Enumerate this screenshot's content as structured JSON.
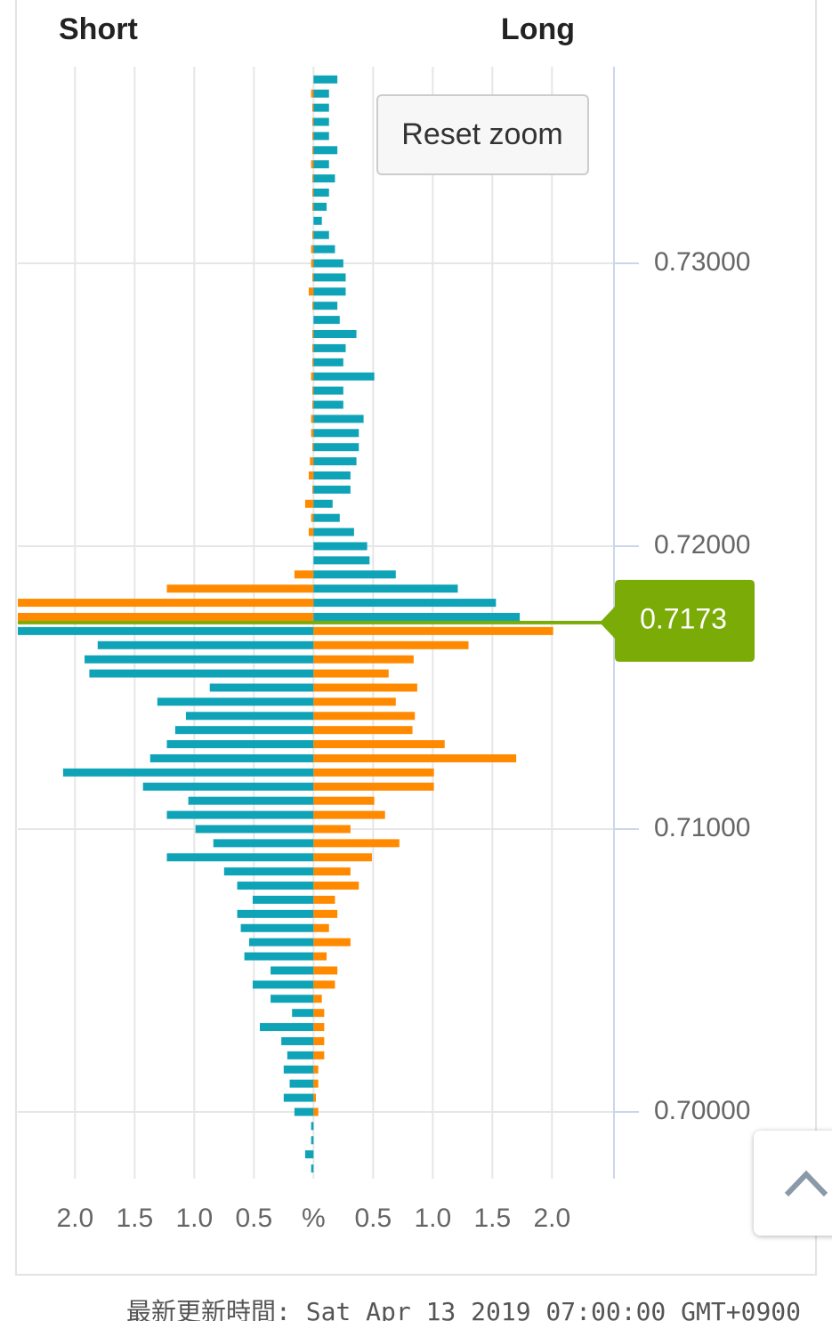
{
  "header": {
    "short": "Short",
    "long": "Long"
  },
  "reset_button": "Reset zoom",
  "footer": "最新更新時間: Sat Apr 13 2019 07:00:00 GMT+0900",
  "chart_data": {
    "type": "butterfly-bar",
    "prices": [
      0.7365,
      0.736,
      0.7355,
      0.735,
      0.7345,
      0.734,
      0.7335,
      0.733,
      0.7325,
      0.732,
      0.7315,
      0.731,
      0.7305,
      0.73,
      0.7295,
      0.729,
      0.7285,
      0.728,
      0.7275,
      0.727,
      0.7265,
      0.726,
      0.7255,
      0.725,
      0.7245,
      0.724,
      0.7235,
      0.723,
      0.7225,
      0.722,
      0.7215,
      0.721,
      0.7205,
      0.72,
      0.7195,
      0.719,
      0.7185,
      0.718,
      0.7175,
      0.717,
      0.7165,
      0.716,
      0.7155,
      0.715,
      0.7145,
      0.714,
      0.7135,
      0.713,
      0.7125,
      0.712,
      0.7115,
      0.711,
      0.7105,
      0.71,
      0.7095,
      0.709,
      0.7085,
      0.708,
      0.7075,
      0.707,
      0.7065,
      0.706,
      0.7055,
      0.705,
      0.7045,
      0.704,
      0.7035,
      0.703,
      0.7025,
      0.702,
      0.7015,
      0.701,
      0.7005,
      0.7,
      0.6995,
      0.699,
      0.6985,
      0.698
    ],
    "short": {
      "values": [
        0,
        0.02,
        0.01,
        0.01,
        0.01,
        0.01,
        0.02,
        0.01,
        0.01,
        0.01,
        0,
        0.01,
        0.02,
        0.02,
        0.01,
        0.04,
        0.01,
        0,
        0.01,
        0.01,
        0.01,
        0.02,
        0.01,
        0.01,
        0.02,
        0.02,
        0.01,
        0.03,
        0.04,
        0.01,
        0.07,
        0.02,
        0.04,
        0,
        0,
        0.16,
        1.23,
        2.6,
        2.6,
        2.6,
        1.81,
        1.92,
        1.88,
        0.87,
        1.31,
        1.07,
        1.16,
        1.23,
        1.37,
        2.1,
        1.43,
        1.05,
        1.23,
        0.99,
        0.84,
        1.23,
        0.75,
        0.64,
        0.51,
        0.64,
        0.61,
        0.54,
        0.58,
        0.36,
        0.51,
        0.36,
        0.18,
        0.45,
        0.27,
        0.22,
        0.25,
        0.2,
        0.25,
        0.16,
        0.02,
        0.02,
        0.07,
        0.02
      ]
    },
    "long": {
      "values": [
        0.2,
        0.13,
        0.13,
        0.13,
        0.13,
        0.2,
        0.13,
        0.18,
        0.13,
        0.11,
        0.07,
        0.13,
        0.18,
        0.25,
        0.27,
        0.27,
        0.2,
        0.22,
        0.36,
        0.27,
        0.25,
        0.51,
        0.25,
        0.25,
        0.42,
        0.38,
        0.38,
        0.36,
        0.31,
        0.31,
        0.16,
        0.22,
        0.34,
        0.45,
        0.47,
        0.69,
        1.21,
        1.53,
        1.73,
        2.01,
        1.3,
        0.84,
        0.63,
        0.87,
        0.69,
        0.85,
        0.83,
        1.1,
        1.7,
        1.01,
        1.01,
        0.51,
        0.6,
        0.31,
        0.72,
        0.49,
        0.31,
        0.38,
        0.18,
        0.2,
        0.13,
        0.31,
        0.11,
        0.2,
        0.18,
        0.07,
        0.09,
        0.09,
        0.09,
        0.09,
        0.04,
        0.04,
        0.02,
        0.04,
        0,
        0,
        0,
        0
      ]
    },
    "colors": {
      "teal": "#0fa3b8",
      "orange": "#ff8a00",
      "current": "#7aab06"
    },
    "current_price": 0.7173,
    "xlim": [
      -2.48,
      2.52
    ],
    "xticks": [
      {
        "value": -2,
        "label": "2.0"
      },
      {
        "value": -1.5,
        "label": "1.5"
      },
      {
        "value": -1,
        "label": "1.0"
      },
      {
        "value": -0.5,
        "label": "0.5"
      },
      {
        "value": 0,
        "label": "%"
      },
      0.5,
      {
        "value": 1,
        "label": "1.0"
      },
      1.5,
      {
        "value": 2,
        "label": "2.0"
      }
    ],
    "ylim": [
      0.69764,
      0.73695
    ],
    "yticks": [
      {
        "value": 0.7,
        "label": "0.70000"
      },
      {
        "value": 0.71,
        "label": "0.71000"
      },
      {
        "value": 0.72,
        "label": "0.72000"
      },
      {
        "value": 0.73,
        "label": "0.73000"
      }
    ],
    "grid": true
  }
}
